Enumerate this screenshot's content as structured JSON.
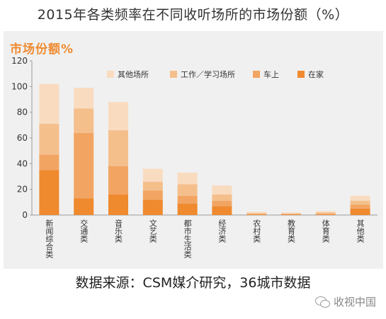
{
  "page_title": "2015年各类频率在不同收听场所的市场份额（%）",
  "source_text": "数据来源：CSM媒介研究，36城市数据",
  "watermark": {
    "text": "收视中国",
    "icon": "wechat-icon"
  },
  "chart_data": {
    "type": "bar",
    "stacked": true,
    "title": "市场份额%",
    "xlabel": "",
    "ylabel": "",
    "ylim": [
      0,
      120
    ],
    "yticks": [
      "0",
      "20",
      "40",
      "60",
      "80",
      "100",
      "120"
    ],
    "grid": false,
    "legend_position": "top-right",
    "categories": [
      "新闻综合类",
      "交通类",
      "音乐类",
      "文艺类",
      "都市生活类",
      "经济类",
      "农村类",
      "教育类",
      "体育类",
      "其他类"
    ],
    "series": [
      {
        "name": "在家",
        "color": "#ef8a2f",
        "values": [
          35,
          13,
          16,
          12,
          9,
          7,
          0.5,
          0.5,
          0.5,
          5
        ]
      },
      {
        "name": "车上",
        "color": "#f2a562",
        "values": [
          12,
          51,
          22,
          7,
          6,
          4,
          0.5,
          0.3,
          0.5,
          3
        ]
      },
      {
        "name": "工作／学习场所",
        "color": "#f5bf8c",
        "values": [
          24,
          19,
          28,
          7,
          9,
          5,
          0.5,
          0.4,
          1,
          3
        ]
      },
      {
        "name": "其他场所",
        "color": "#f9dcc0",
        "values": [
          31,
          16,
          22,
          10,
          9,
          7,
          1,
          0.8,
          1,
          4
        ]
      }
    ]
  }
}
